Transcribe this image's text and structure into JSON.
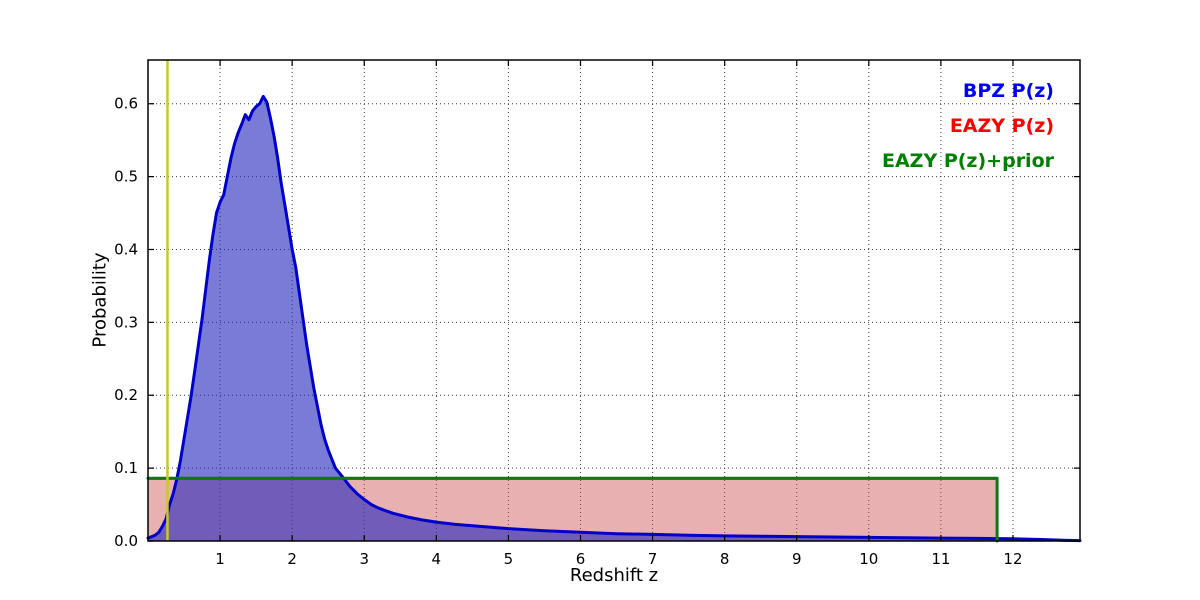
{
  "chart_data": {
    "type": "line",
    "title": "",
    "xlabel": "Redshift z",
    "ylabel": "Probability",
    "xlim": [
      0,
      12.93
    ],
    "ylim": [
      0,
      0.66
    ],
    "grid": "dotted",
    "legend_position": "upper right",
    "xticks": [
      {
        "v": 1,
        "label": "1"
      },
      {
        "v": 2,
        "label": "2"
      },
      {
        "v": 3,
        "label": "3"
      },
      {
        "v": 4,
        "label": "4"
      },
      {
        "v": 5,
        "label": "5"
      },
      {
        "v": 6,
        "label": "6"
      },
      {
        "v": 7,
        "label": "7"
      },
      {
        "v": 8,
        "label": "8"
      },
      {
        "v": 9,
        "label": "9"
      },
      {
        "v": 10,
        "label": "10"
      },
      {
        "v": 11,
        "label": "11"
      },
      {
        "v": 12,
        "label": "12"
      }
    ],
    "yticks": [
      {
        "v": 0.0,
        "label": "0.0"
      },
      {
        "v": 0.1,
        "label": "0.1"
      },
      {
        "v": 0.2,
        "label": "0.2"
      },
      {
        "v": 0.3,
        "label": "0.3"
      },
      {
        "v": 0.4,
        "label": "0.4"
      },
      {
        "v": 0.5,
        "label": "0.5"
      },
      {
        "v": 0.6,
        "label": "0.6"
      }
    ],
    "legend": [
      {
        "label": "BPZ P(z)",
        "color": "#0000ff"
      },
      {
        "label": "EAZY P(z)",
        "color": "#ff0000"
      },
      {
        "label": "EAZY P(z)+prior",
        "color": "#008000"
      }
    ],
    "marker_line": {
      "x": 0.27,
      "color": "#c9c926",
      "width": 2.5
    },
    "series": [
      {
        "name": "EAZY P(z)",
        "color": "#bb3333",
        "width": 1.5,
        "fill": "rgba(205,80,80,0.45)",
        "points": [
          [
            0,
            0.085
          ],
          [
            11.78,
            0.085
          ],
          [
            11.78,
            0.0
          ]
        ]
      },
      {
        "name": "BPZ P(z)",
        "color": "#0000cc",
        "width": 3,
        "fill": "rgba(40,40,190,0.62)",
        "points": [
          [
            0.0,
            0.004
          ],
          [
            0.1,
            0.008
          ],
          [
            0.15,
            0.012
          ],
          [
            0.2,
            0.02
          ],
          [
            0.25,
            0.03
          ],
          [
            0.3,
            0.05
          ],
          [
            0.35,
            0.065
          ],
          [
            0.4,
            0.085
          ],
          [
            0.45,
            0.11
          ],
          [
            0.5,
            0.14
          ],
          [
            0.55,
            0.17
          ],
          [
            0.6,
            0.2
          ],
          [
            0.65,
            0.235
          ],
          [
            0.7,
            0.27
          ],
          [
            0.75,
            0.305
          ],
          [
            0.8,
            0.345
          ],
          [
            0.85,
            0.385
          ],
          [
            0.9,
            0.42
          ],
          [
            0.95,
            0.45
          ],
          [
            1.0,
            0.465
          ],
          [
            1.05,
            0.475
          ],
          [
            1.1,
            0.5
          ],
          [
            1.15,
            0.525
          ],
          [
            1.2,
            0.545
          ],
          [
            1.25,
            0.56
          ],
          [
            1.3,
            0.572
          ],
          [
            1.35,
            0.585
          ],
          [
            1.4,
            0.578
          ],
          [
            1.45,
            0.59
          ],
          [
            1.5,
            0.596
          ],
          [
            1.55,
            0.6
          ],
          [
            1.6,
            0.61
          ],
          [
            1.65,
            0.602
          ],
          [
            1.7,
            0.58
          ],
          [
            1.75,
            0.555
          ],
          [
            1.8,
            0.525
          ],
          [
            1.85,
            0.49
          ],
          [
            1.9,
            0.46
          ],
          [
            1.95,
            0.43
          ],
          [
            2.0,
            0.4
          ],
          [
            2.05,
            0.375
          ],
          [
            2.1,
            0.34
          ],
          [
            2.15,
            0.305
          ],
          [
            2.2,
            0.27
          ],
          [
            2.25,
            0.24
          ],
          [
            2.3,
            0.21
          ],
          [
            2.35,
            0.185
          ],
          [
            2.4,
            0.16
          ],
          [
            2.45,
            0.14
          ],
          [
            2.5,
            0.125
          ],
          [
            2.6,
            0.1
          ],
          [
            2.7,
            0.088
          ],
          [
            2.8,
            0.075
          ],
          [
            2.9,
            0.065
          ],
          [
            3.0,
            0.057
          ],
          [
            3.1,
            0.05
          ],
          [
            3.2,
            0.045
          ],
          [
            3.4,
            0.038
          ],
          [
            3.6,
            0.033
          ],
          [
            3.8,
            0.029
          ],
          [
            4.0,
            0.026
          ],
          [
            4.25,
            0.023
          ],
          [
            4.5,
            0.021
          ],
          [
            5.0,
            0.017
          ],
          [
            5.5,
            0.014
          ],
          [
            6.0,
            0.012
          ],
          [
            6.5,
            0.01
          ],
          [
            7.0,
            0.009
          ],
          [
            7.5,
            0.008
          ],
          [
            8.0,
            0.007
          ],
          [
            8.5,
            0.0065
          ],
          [
            9.0,
            0.006
          ],
          [
            9.5,
            0.0055
          ],
          [
            10.0,
            0.005
          ],
          [
            10.5,
            0.0045
          ],
          [
            11.0,
            0.004
          ],
          [
            11.5,
            0.0035
          ],
          [
            12.0,
            0.003
          ],
          [
            12.4,
            0.002
          ],
          [
            12.7,
            0.001
          ],
          [
            12.93,
            0.0005
          ]
        ]
      },
      {
        "name": "EAZY P(z)+prior",
        "color": "#117711",
        "width": 3,
        "fill": null,
        "points": [
          [
            0,
            0.086
          ],
          [
            11.78,
            0.086
          ],
          [
            11.78,
            0.0
          ]
        ]
      }
    ]
  }
}
